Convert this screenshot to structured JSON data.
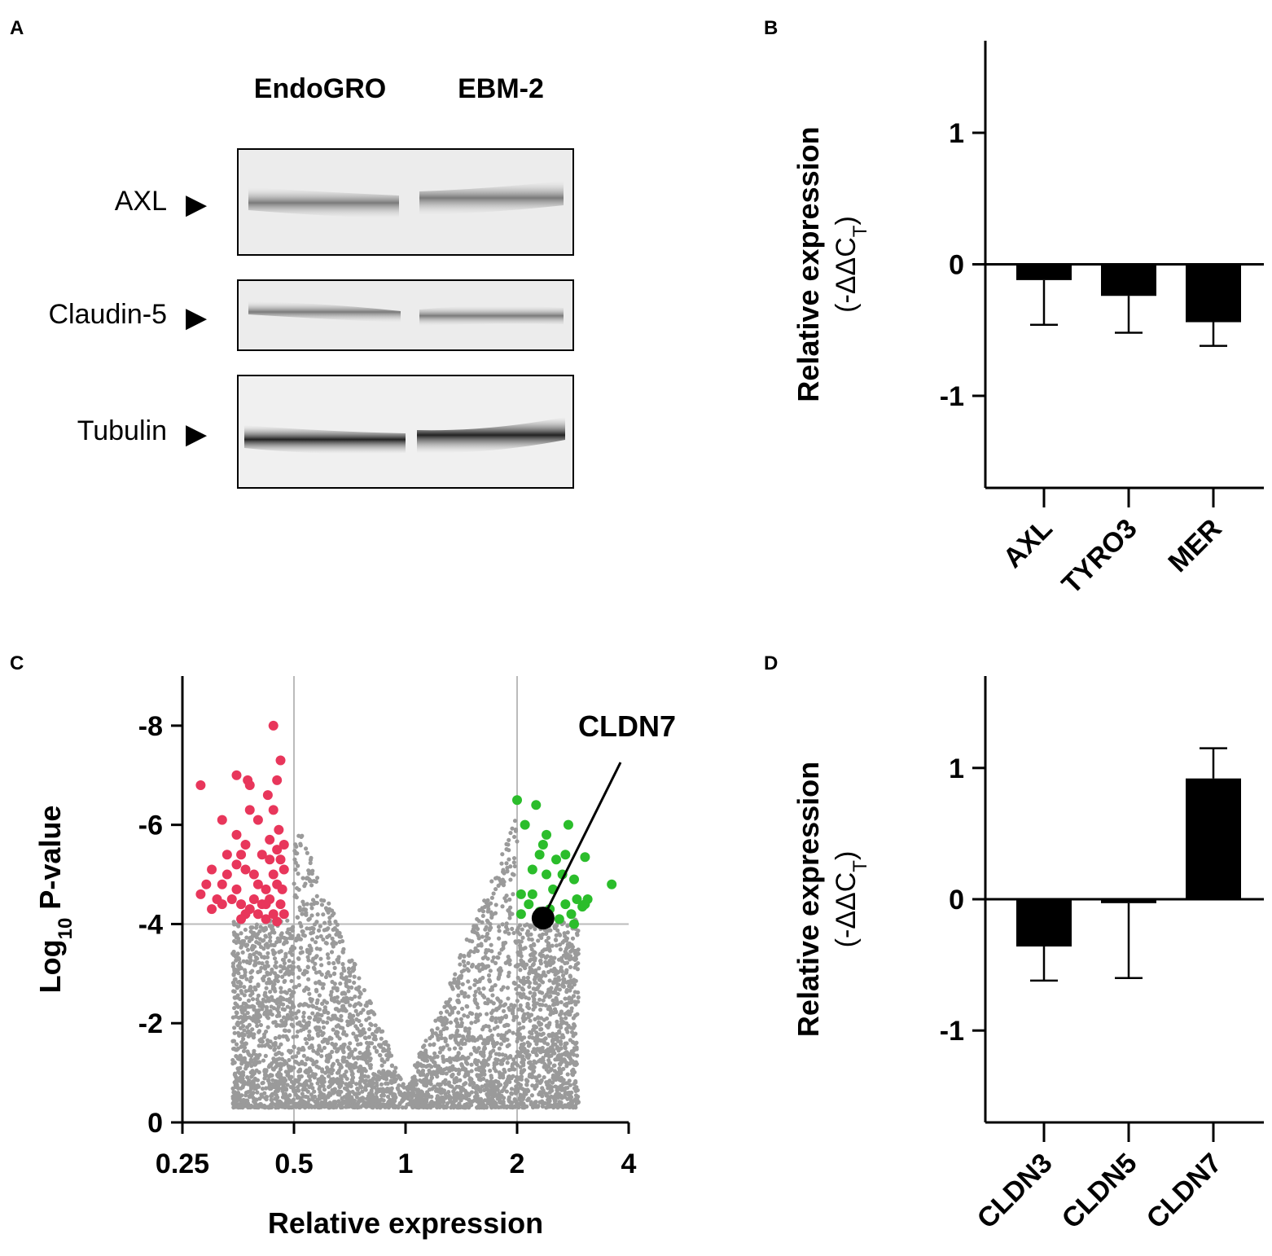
{
  "panels": {
    "a": "A",
    "b": "B",
    "c": "C",
    "d": "D"
  },
  "western_blot": {
    "lane_headers": [
      "EndoGRO",
      "EBM-2"
    ],
    "bands": [
      {
        "label": "AXL",
        "arrow": "▶"
      },
      {
        "label": "Claudin-5",
        "arrow": "▶"
      },
      {
        "label": "Tubulin",
        "arrow": "▶"
      }
    ]
  },
  "chart_data": [
    {
      "id": "B",
      "type": "bar",
      "ylabel": "Relative expression",
      "ylabel_sub": "(-ΔΔC",
      "ylabel_sub_subscript": "T",
      "ylabel_sub_close": ")",
      "ylim": [
        -1.7,
        1.7
      ],
      "yticks": [
        1,
        0,
        -1
      ],
      "ytick_labels": [
        "1",
        "0",
        "-1"
      ],
      "categories": [
        "AXL",
        "TYRO3",
        "MER"
      ],
      "values": [
        -0.12,
        -0.24,
        -0.44
      ],
      "error_low": [
        -0.46,
        -0.52,
        -0.62
      ],
      "bar_color": "#000000"
    },
    {
      "id": "C",
      "type": "scatter",
      "xlabel": "Relative expression",
      "ylabel_main": "Log",
      "ylabel_subscript": "10",
      "ylabel_rest": " P-value",
      "xscale": "log2",
      "xlim": [
        0.25,
        4
      ],
      "xticks": [
        0.25,
        0.5,
        1,
        2,
        4
      ],
      "xtick_labels": [
        "0.25",
        "0.5",
        "1",
        "2",
        "4"
      ],
      "ylim": [
        0,
        -9
      ],
      "yticks": [
        -8,
        -6,
        -4,
        -2,
        0
      ],
      "ytick_labels": [
        "-8",
        "-6",
        "-4",
        "-2",
        "0"
      ],
      "thresholds": {
        "x": [
          0.5,
          2
        ],
        "y": -4
      },
      "colors": {
        "down": "#e8365b",
        "up": "#2bbd2b",
        "background": "#9a9a9a",
        "highlight": "#000000",
        "gridline": "#bbbbbb"
      },
      "highlight": {
        "label": "CLDN7",
        "x": 2.35,
        "y": -4.12
      },
      "down_points": [
        [
          0.28,
          -6.8
        ],
        [
          0.35,
          -7
        ],
        [
          0.375,
          -6.9
        ],
        [
          0.38,
          -6.8
        ],
        [
          0.44,
          -8
        ],
        [
          0.46,
          -7.3
        ],
        [
          0.45,
          -6.9
        ],
        [
          0.425,
          -6.6
        ],
        [
          0.32,
          -6.1
        ],
        [
          0.38,
          -6.3
        ],
        [
          0.44,
          -6.3
        ],
        [
          0.4,
          -6.1
        ],
        [
          0.35,
          -5.8
        ],
        [
          0.37,
          -5.6
        ],
        [
          0.43,
          -5.7
        ],
        [
          0.45,
          -5.5
        ],
        [
          0.47,
          -5.6
        ],
        [
          0.33,
          -5.4
        ],
        [
          0.36,
          -5.4
        ],
        [
          0.41,
          -5.4
        ],
        [
          0.43,
          -5.3
        ],
        [
          0.46,
          -5.3
        ],
        [
          0.3,
          -5.1
        ],
        [
          0.33,
          -5
        ],
        [
          0.37,
          -5.1
        ],
        [
          0.39,
          -5
        ],
        [
          0.44,
          -5
        ],
        [
          0.47,
          -5.1
        ],
        [
          0.29,
          -4.8
        ],
        [
          0.32,
          -4.8
        ],
        [
          0.35,
          -4.7
        ],
        [
          0.4,
          -4.8
        ],
        [
          0.42,
          -4.7
        ],
        [
          0.45,
          -4.8
        ],
        [
          0.28,
          -4.6
        ],
        [
          0.31,
          -4.5
        ],
        [
          0.34,
          -4.5
        ],
        [
          0.36,
          -4.4
        ],
        [
          0.39,
          -4.5
        ],
        [
          0.41,
          -4.4
        ],
        [
          0.43,
          -4.5
        ],
        [
          0.46,
          -4.4
        ],
        [
          0.3,
          -4.3
        ],
        [
          0.37,
          -4.2
        ],
        [
          0.4,
          -4.2
        ],
        [
          0.42,
          -4.1
        ],
        [
          0.44,
          -4.2
        ],
        [
          0.47,
          -4.2
        ],
        [
          0.36,
          -4.1
        ],
        [
          0.45,
          -4.05
        ],
        [
          0.38,
          -4.3
        ],
        [
          0.32,
          -4.4
        ],
        [
          0.465,
          -4.7
        ],
        [
          0.455,
          -5.9
        ],
        [
          0.42,
          -4.4
        ],
        [
          0.35,
          -5.2
        ]
      ],
      "up_points": [
        [
          2.0,
          -6.5
        ],
        [
          2.25,
          -6.4
        ],
        [
          2.1,
          -6
        ],
        [
          2.4,
          -5.8
        ],
        [
          2.75,
          -6
        ],
        [
          2.35,
          -5.6
        ],
        [
          2.3,
          -5.4
        ],
        [
          2.55,
          -5.3
        ],
        [
          2.7,
          -5.4
        ],
        [
          3.05,
          -5.35
        ],
        [
          2.2,
          -5.1
        ],
        [
          2.4,
          -5
        ],
        [
          2.65,
          -5
        ],
        [
          2.85,
          -4.9
        ],
        [
          2.05,
          -4.6
        ],
        [
          2.2,
          -4.6
        ],
        [
          2.5,
          -4.7
        ],
        [
          3.6,
          -4.8
        ],
        [
          2.15,
          -4.4
        ],
        [
          2.7,
          -4.4
        ],
        [
          2.9,
          -4.5
        ],
        [
          3.1,
          -4.5
        ],
        [
          2.05,
          -4.2
        ],
        [
          2.3,
          -4.25
        ],
        [
          2.8,
          -4.2
        ],
        [
          3.0,
          -4.35
        ],
        [
          2.85,
          -4.0
        ],
        [
          3.05,
          -4.4
        ],
        [
          2.45,
          -4.3
        ],
        [
          2.6,
          -4.1
        ]
      ]
    },
    {
      "id": "D",
      "type": "bar",
      "ylabel": "Relative expression",
      "ylabel_sub": "(-ΔΔC",
      "ylabel_sub_subscript": "T",
      "ylabel_sub_close": ")",
      "ylim": [
        -1.7,
        1.7
      ],
      "yticks": [
        1,
        0,
        -1
      ],
      "ytick_labels": [
        "1",
        "0",
        "-1"
      ],
      "categories": [
        "CLDN3",
        "CLDN5",
        "CLDN7"
      ],
      "values": [
        -0.36,
        -0.03,
        0.92
      ],
      "error_low": [
        -0.62,
        -0.6,
        null
      ],
      "error_high": [
        null,
        null,
        1.15
      ],
      "bar_color": "#000000"
    }
  ]
}
